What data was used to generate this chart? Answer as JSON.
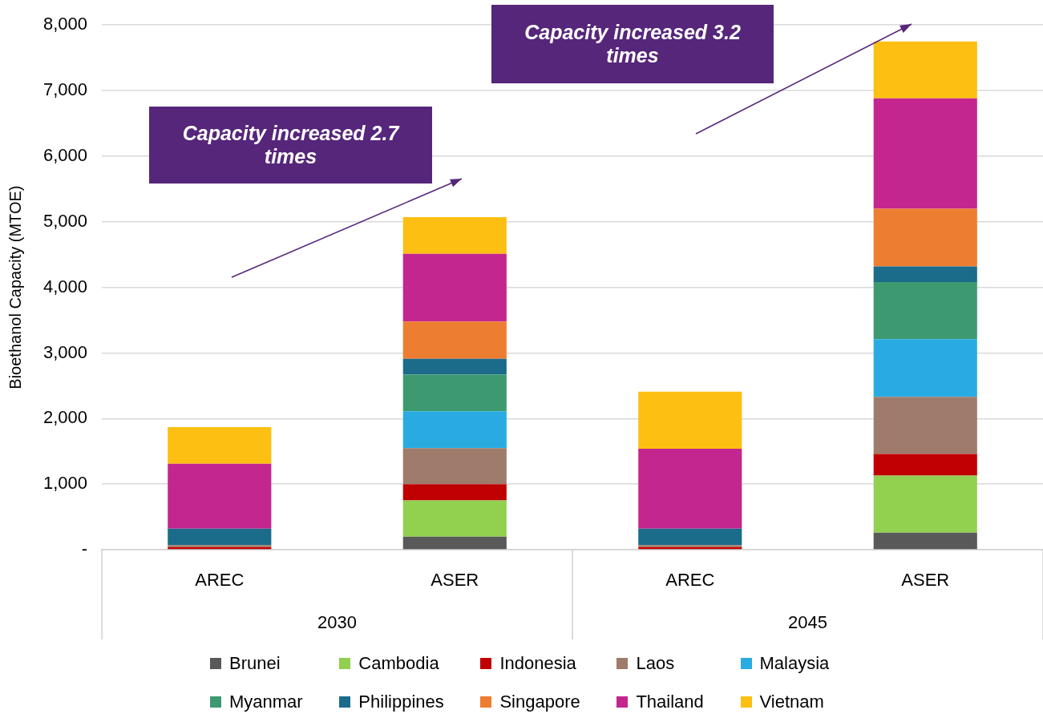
{
  "chart_data": {
    "type": "bar",
    "stacked": true,
    "ylabel": "Bioethanol Capacity (MTOE)",
    "categories": [
      "AREC",
      "ASER",
      "AREC",
      "ASER"
    ],
    "series": [
      {
        "name": "Brunei",
        "color": "#595959",
        "values": [
          0,
          200,
          0,
          260
        ]
      },
      {
        "name": "Cambodia",
        "color": "#92d050",
        "values": [
          0,
          550,
          0,
          870
        ]
      },
      {
        "name": "Indonesia",
        "color": "#c00000",
        "values": [
          40,
          250,
          40,
          330
        ]
      },
      {
        "name": "Laos",
        "color": "#9e7b6b",
        "values": [
          30,
          550,
          30,
          870
        ]
      },
      {
        "name": "Malaysia",
        "color": "#29abe2",
        "values": [
          0,
          560,
          0,
          880
        ]
      },
      {
        "name": "Myanmar",
        "color": "#3d9970",
        "values": [
          0,
          560,
          0,
          870
        ]
      },
      {
        "name": "Philippines",
        "color": "#1b6b8a",
        "values": [
          250,
          240,
          250,
          240
        ]
      },
      {
        "name": "Singapore",
        "color": "#ed7d31",
        "values": [
          0,
          570,
          0,
          880
        ]
      },
      {
        "name": "Thailand",
        "color": "#c4268f",
        "values": [
          990,
          1030,
          1220,
          1680
        ]
      },
      {
        "name": "Vietnam",
        "color": "#fcbf12",
        "values": [
          560,
          560,
          870,
          870
        ]
      }
    ],
    "ylim": [
      0,
      8000
    ],
    "yticks": [
      {
        "value": 0,
        "label": "-"
      },
      {
        "value": 1000,
        "label": "1,000"
      },
      {
        "value": 2000,
        "label": "2,000"
      },
      {
        "value": 3000,
        "label": "3,000"
      },
      {
        "value": 4000,
        "label": "4,000"
      },
      {
        "value": 5000,
        "label": "5,000"
      },
      {
        "value": 6000,
        "label": "6,000"
      },
      {
        "value": 7000,
        "label": "7,000"
      },
      {
        "value": 8000,
        "label": "8,000"
      }
    ],
    "grid": "y",
    "legend": "bottom",
    "annotations": [
      "2030",
      "2045",
      "Capacity increased 2.7 times",
      "Capacity increased 3.2 times"
    ]
  }
}
